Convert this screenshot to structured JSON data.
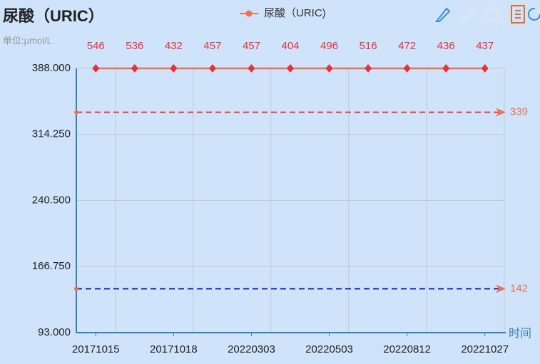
{
  "chart_data": {
    "type": "line",
    "title": "尿酸（URIC）",
    "unit_label": "单位:μmol/L",
    "x_axis_name": "时间",
    "categories": [
      "20171015",
      null,
      "20171018",
      null,
      "20220303",
      null,
      "20220503",
      null,
      "20220812",
      null,
      "20221027"
    ],
    "series": [
      {
        "name": "尿酸（URIC)",
        "color": "#f07050",
        "point_color": "#e8303a",
        "values": [
          546,
          536,
          432,
          457,
          457,
          404,
          496,
          516,
          472,
          436,
          437
        ]
      }
    ],
    "ylim": [
      93,
      388
    ],
    "yticks": [
      {
        "value": 93,
        "label": "93.000"
      },
      {
        "value": 166.75,
        "label": "166.750"
      },
      {
        "value": 240.5,
        "label": "240.500"
      },
      {
        "value": 314.25,
        "label": "314.250"
      },
      {
        "value": 388,
        "label": "388.000"
      }
    ],
    "grid": true,
    "mark_lines": [
      {
        "value": 339,
        "color": "#f03838"
      },
      {
        "value": 142,
        "color": "#1a1ad8"
      }
    ]
  }
}
